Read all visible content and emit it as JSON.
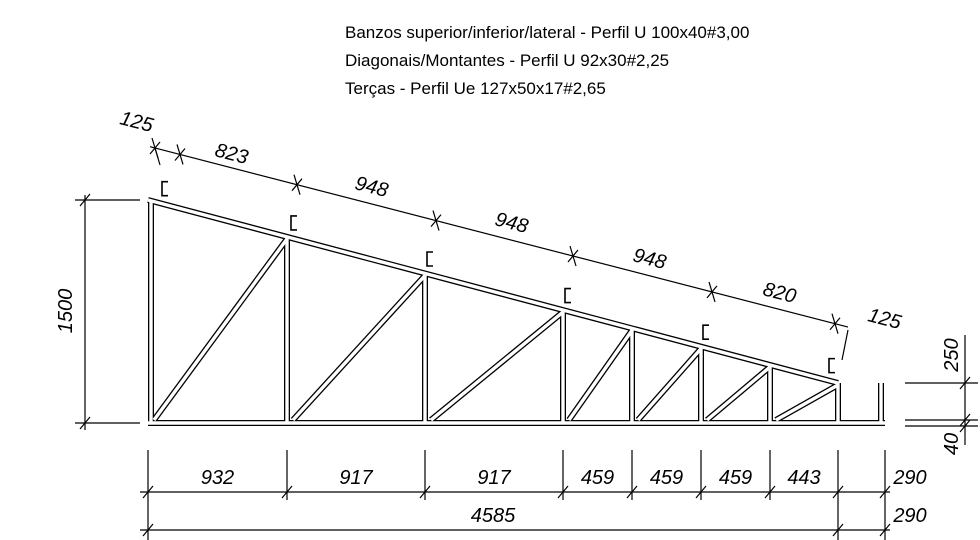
{
  "notes": [
    "Banzos superior/inferior/lateral - Perfil U 100x40#3,00",
    "Diagonais/Montantes - Perfil U 92x30#2,25",
    "Terças - Perfil Ue 127x50x17#2,65"
  ],
  "dimensions": {
    "top": [
      "125",
      "823",
      "948",
      "948",
      "948",
      "820",
      "125"
    ],
    "left": "1500",
    "right": [
      "250",
      "40"
    ],
    "bottom": [
      "932",
      "917",
      "917",
      "459",
      "459",
      "459",
      "443",
      "290"
    ],
    "total": [
      "4585",
      "290"
    ]
  }
}
